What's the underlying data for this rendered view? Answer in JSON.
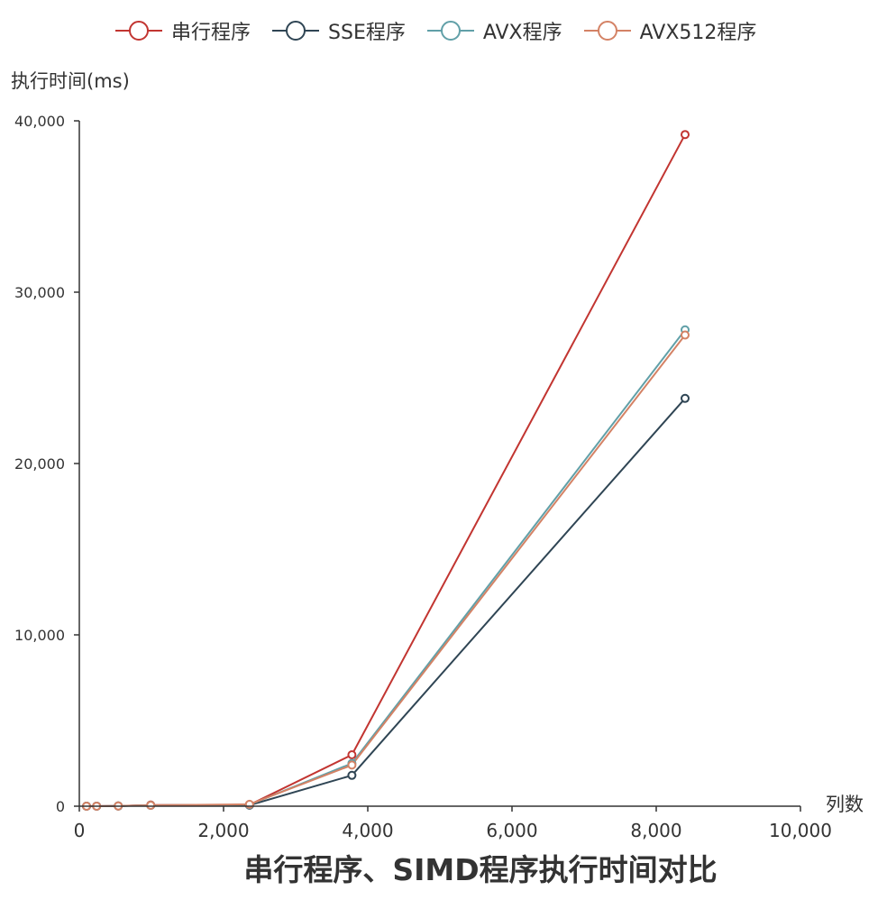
{
  "chart_data": {
    "type": "line",
    "title": "串行程序、SIMD程序执行时间对比",
    "xlabel": "列数",
    "ylabel": "执行时间(ms)",
    "xlim": [
      0,
      10000
    ],
    "ylim": [
      0,
      40000
    ],
    "x_ticks": [
      "0",
      "2,000",
      "4,000",
      "6,000",
      "8,000",
      "10,000"
    ],
    "y_ticks": [
      "0",
      "10,000",
      "20,000",
      "30,000",
      "40,000"
    ],
    "x_tick_values": [
      0,
      2000,
      4000,
      6000,
      8000,
      10000
    ],
    "y_tick_values": [
      0,
      10000,
      20000,
      30000,
      40000
    ],
    "grid": false,
    "legend_position": "top",
    "x": [
      100,
      240,
      540,
      990,
      2360,
      3780,
      8400
    ],
    "series": [
      {
        "name": "串行程序",
        "color": "#c23531",
        "values": [
          1,
          3,
          15,
          70,
          80,
          3000,
          39200
        ]
      },
      {
        "name": "SSE程序",
        "color": "#2f4554",
        "values": [
          1,
          2,
          10,
          50,
          60,
          1800,
          23800
        ]
      },
      {
        "name": "AVX程序",
        "color": "#61a0a8",
        "values": [
          1,
          2,
          12,
          55,
          90,
          2500,
          27800
        ]
      },
      {
        "name": "AVX512程序",
        "color": "#d48265",
        "values": [
          1,
          2,
          12,
          55,
          110,
          2400,
          27500
        ]
      }
    ]
  }
}
